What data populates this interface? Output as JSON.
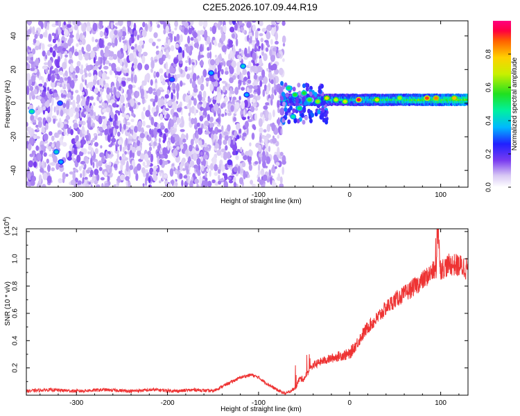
{
  "title": "C2E5.2026.107.09.44.R19",
  "chart_data": [
    {
      "type": "heatmap",
      "name": "spectrogram",
      "xlabel": "Height of straight line (km)",
      "ylabel": "Frequency (Hz)",
      "xlim": [
        -355,
        130
      ],
      "ylim": [
        -50,
        49
      ],
      "xticks": [
        -300,
        -200,
        -100,
        0,
        100
      ],
      "yticks": [
        -40,
        -20,
        0,
        20,
        40
      ],
      "colorbar": {
        "label": "Normalized spectral amplitude",
        "range": [
          0.0,
          1.0
        ],
        "ticks": [
          0.0,
          0.2,
          0.4,
          0.6,
          0.8
        ],
        "tick_labels": [
          "0.0",
          "0.2",
          "0.4",
          "0.6",
          "0.8"
        ]
      },
      "description_points": {
        "noise_region_x": [
          -355,
          -72
        ],
        "band_center_hz": 2,
        "band_x": [
          -75,
          130
        ],
        "hotspots": [
          {
            "x": -349,
            "y": -5,
            "v": 0.45
          },
          {
            "x": -318,
            "y": 0,
            "v": 0.3
          },
          {
            "x": -322,
            "y": -29,
            "v": 0.4
          },
          {
            "x": -317,
            "y": -35,
            "v": 0.35
          },
          {
            "x": -195,
            "y": 14,
            "v": 0.3
          },
          {
            "x": -152,
            "y": 18,
            "v": 0.35
          },
          {
            "x": -117,
            "y": 22,
            "v": 0.4
          },
          {
            "x": -113,
            "y": 5,
            "v": 0.35
          },
          {
            "x": -67,
            "y": 9,
            "v": 0.5
          },
          {
            "x": -62,
            "y": -8,
            "v": 0.45
          },
          {
            "x": -60,
            "y": 5,
            "v": 0.55
          },
          {
            "x": -55,
            "y": -3,
            "v": 0.5
          },
          {
            "x": -50,
            "y": 6,
            "v": 0.55
          },
          {
            "x": -44,
            "y": 2,
            "v": 0.6
          },
          {
            "x": -35,
            "y": 1,
            "v": 0.65
          },
          {
            "x": -25,
            "y": 3,
            "v": 0.75
          },
          {
            "x": -15,
            "y": 2,
            "v": 0.7
          },
          {
            "x": -5,
            "y": 1,
            "v": 0.7
          },
          {
            "x": 10,
            "y": 2,
            "v": 0.95
          },
          {
            "x": 30,
            "y": 2,
            "v": 0.75
          },
          {
            "x": 55,
            "y": 3,
            "v": 0.65
          },
          {
            "x": 85,
            "y": 3,
            "v": 0.9
          },
          {
            "x": 95,
            "y": 3,
            "v": 0.85
          },
          {
            "x": 115,
            "y": 3,
            "v": 0.8
          }
        ]
      }
    },
    {
      "type": "line",
      "name": "snr",
      "xlabel": "Height of straight line (km)",
      "ylabel": "SNR (10 * v/v)",
      "y_multiplier": "(x10",
      "y_multiplier_exp": "4",
      "y_multiplier_close": ")",
      "xlim": [
        -355,
        130
      ],
      "ylim": [
        0,
        1.22
      ],
      "xticks": [
        -300,
        -200,
        -100,
        0,
        100
      ],
      "yticks": [
        0.2,
        0.4,
        0.6,
        0.8,
        1.0,
        1.2
      ],
      "ytick_labels": [
        "0.2",
        "0.4",
        "0.6",
        "0.8",
        "1.0",
        "1.2"
      ],
      "color": "#ee3333",
      "series": [
        {
          "name": "SNR",
          "x": [
            -355,
            -330,
            -300,
            -270,
            -240,
            -215,
            -190,
            -170,
            -150,
            -135,
            -120,
            -108,
            -100,
            -92,
            -80,
            -70,
            -60,
            -55,
            -50,
            -45,
            -40,
            -30,
            -20,
            -10,
            0,
            10,
            20,
            30,
            40,
            50,
            60,
            70,
            80,
            90,
            95,
            97,
            100,
            105,
            110,
            120,
            130
          ],
          "y": [
            0.03,
            0.04,
            0.03,
            0.04,
            0.03,
            0.04,
            0.03,
            0.04,
            0.03,
            0.08,
            0.13,
            0.15,
            0.13,
            0.09,
            0.04,
            0.01,
            0.05,
            0.12,
            0.12,
            0.18,
            0.22,
            0.25,
            0.27,
            0.29,
            0.3,
            0.4,
            0.5,
            0.56,
            0.64,
            0.7,
            0.74,
            0.79,
            0.84,
            0.9,
            0.92,
            1.2,
            0.92,
            0.94,
            0.96,
            0.95,
            0.93
          ]
        }
      ]
    }
  ]
}
